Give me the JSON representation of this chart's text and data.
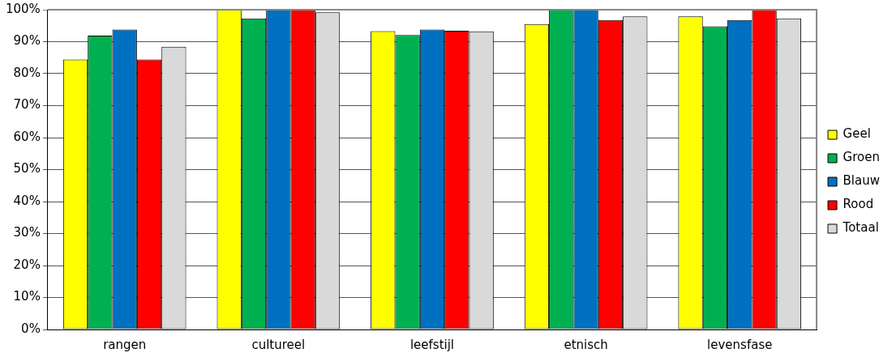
{
  "chart_data": {
    "type": "bar",
    "categories": [
      "rangen",
      "cultureel",
      "leefstijl",
      "etnisch",
      "levensfase"
    ],
    "series": [
      {
        "name": "Geel",
        "color": "#ffff00",
        "values": [
          84.4,
          100,
          93.3,
          95.5,
          97.9
        ]
      },
      {
        "name": "Groen",
        "color": "#00b050",
        "values": [
          91.9,
          97.3,
          92.1,
          100,
          94.8
        ]
      },
      {
        "name": "Blauw",
        "color": "#0070c0",
        "values": [
          93.8,
          100,
          93.8,
          100,
          96.8
        ]
      },
      {
        "name": "Rood",
        "color": "#ff0000",
        "values": [
          84.4,
          100,
          93.4,
          96.8,
          100
        ]
      },
      {
        "name": "Totaal",
        "color": "#d9d9d9",
        "values": [
          88.4,
          99.2,
          93.2,
          97.9,
          97.3
        ]
      }
    ],
    "ylim": [
      0,
      100
    ],
    "yticks": [
      {
        "value": 0,
        "label": "0%"
      },
      {
        "value": 10,
        "label": "10%"
      },
      {
        "value": 20,
        "label": "20%"
      },
      {
        "value": 30,
        "label": "30%"
      },
      {
        "value": 40,
        "label": "40%"
      },
      {
        "value": 50,
        "label": "50%"
      },
      {
        "value": 60,
        "label": "60%"
      },
      {
        "value": 70,
        "label": "70%"
      },
      {
        "value": 80,
        "label": "80%"
      },
      {
        "value": 90,
        "label": "90%"
      },
      {
        "value": 100,
        "label": "100%"
      }
    ],
    "grid": "y",
    "legend": "right"
  }
}
